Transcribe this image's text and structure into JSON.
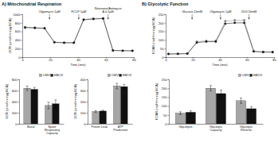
{
  "chart_data": [
    {
      "type": "line",
      "title": "A) Mitochondrial Respiration",
      "x_label": "Time (min)",
      "y_label": "OCR (pmol/min/µg BCA)",
      "x": [
        2,
        9,
        16,
        23,
        30,
        37,
        44,
        51,
        58,
        65,
        72,
        79
      ],
      "series": [
        {
          "color": "#9a9a9a",
          "marker": "circle",
          "values": [
            700,
            690,
            680,
            350,
            340,
            340,
            880,
            900,
            910,
            160,
            150,
            150
          ]
        },
        {
          "color": "#1a1a1a",
          "marker": "circle",
          "values": [
            690,
            680,
            670,
            345,
            335,
            335,
            870,
            890,
            900,
            155,
            150,
            148
          ]
        }
      ],
      "xlim": [
        0,
        80
      ],
      "xticks": [
        0,
        20,
        40,
        60,
        80
      ],
      "ylim": [
        0,
        1000
      ],
      "yticks": [
        0,
        200,
        400,
        600,
        800,
        1000
      ],
      "annotations": [
        {
          "text": "Oligomycin 1µM",
          "x": 19.5
        },
        {
          "text": "FCCP 1µM",
          "x": 40.5
        },
        {
          "text": "Rotenone/Antimycin A 0.5µM",
          "x": 61.5
        }
      ]
    },
    {
      "type": "bar",
      "y_label": "OCR (pmol/min/µg BCA)",
      "legend": "top-right",
      "categories": [
        "Basal",
        "Spare Respiratory Capacity"
      ],
      "series": [
        {
          "name": "CMV",
          "color": "#a6a6a6",
          "values": [
            640,
            330
          ],
          "errors": [
            40,
            60
          ]
        },
        {
          "name": "HBOX",
          "color": "#111111",
          "values": [
            620,
            360
          ],
          "errors": [
            35,
            70
          ]
        }
      ],
      "ylim": [
        0,
        800
      ],
      "yticks": [
        0,
        200,
        400,
        600,
        800
      ]
    },
    {
      "type": "bar",
      "y_label": "OCR (pmol/min/µg BCA)",
      "legend": "top-right",
      "categories": [
        "Proton Leak",
        "ATP Production"
      ],
      "series": [
        {
          "name": "CMV",
          "color": "#a6a6a6",
          "values": [
            110,
            340
          ],
          "errors": [
            8,
            25
          ]
        },
        {
          "name": "HBOX",
          "color": "#111111",
          "values": [
            115,
            335
          ],
          "errors": [
            8,
            20
          ]
        }
      ],
      "ylim": [
        0,
        400
      ],
      "yticks": [
        0,
        100,
        200,
        300,
        400
      ]
    },
    {
      "type": "line",
      "title": "B) Glycolytic Function",
      "x_label": "Time (min)",
      "y_label": "ECAR (mpH/min/µg BCA)",
      "x": [
        2,
        9,
        16,
        23,
        30,
        37,
        44,
        51,
        58,
        65,
        72,
        79
      ],
      "series": [
        {
          "color": "#9a9a9a",
          "marker": "circle",
          "values": [
            20,
            20,
            22,
            90,
            95,
            95,
            210,
            215,
            215,
            35,
            30,
            30
          ]
        },
        {
          "color": "#1a1a1a",
          "marker": "circle",
          "values": [
            18,
            19,
            20,
            85,
            90,
            90,
            195,
            200,
            200,
            33,
            30,
            29
          ]
        }
      ],
      "xlim": [
        0,
        80
      ],
      "xticks": [
        0,
        20,
        40,
        60,
        80
      ],
      "ylim": [
        0,
        250
      ],
      "yticks": [
        0,
        50,
        100,
        150,
        200,
        250
      ],
      "annotations": [
        {
          "text": "Glucose 10mM",
          "x": 19.5
        },
        {
          "text": "Oligomycin 1µM",
          "x": 40.5
        },
        {
          "text": "2DG 50mM",
          "x": 61.5
        }
      ]
    },
    {
      "type": "bar",
      "y_label": "ECAR (mpH/min/µg BCA)",
      "legend": "top-right",
      "categories": [
        "Glycolysis",
        "Glycolytic Capacity",
        "Glycolytic Reserve"
      ],
      "series": [
        {
          "name": "CMV",
          "color": "#a6a6a6",
          "values": [
            60,
            200,
            130
          ],
          "errors": [
            8,
            15,
            15
          ]
        },
        {
          "name": "HBOX",
          "color": "#111111",
          "values": [
            65,
            170,
            85
          ],
          "errors": [
            8,
            20,
            12
          ]
        }
      ],
      "ylim": [
        0,
        250
      ],
      "yticks": [
        0,
        50,
        100,
        150,
        200,
        250
      ]
    }
  ]
}
